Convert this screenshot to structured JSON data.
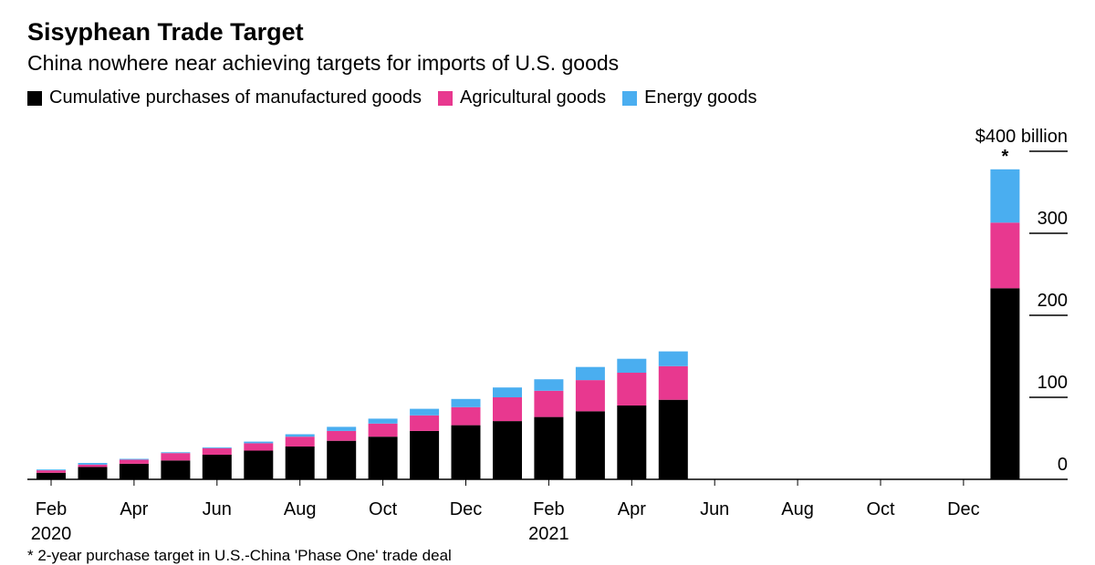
{
  "header": {
    "title": "Sisyphean Trade Target",
    "subtitle": "China nowhere near achieving targets for imports of U.S. goods"
  },
  "footnote": "* 2-year purchase target in U.S.-China 'Phase One' trade deal",
  "chart_data": {
    "type": "bar",
    "stacked": true,
    "title": "Sisyphean Trade Target",
    "subtitle": "China nowhere near achieving targets for imports of U.S. goods",
    "categories": [
      "Feb 2020",
      "Mar 2020",
      "Apr 2020",
      "May 2020",
      "Jun 2020",
      "Jul 2020",
      "Aug 2020",
      "Sep 2020",
      "Oct 2020",
      "Nov 2020",
      "Dec 2020",
      "Jan 2021",
      "Feb 2021",
      "Mar 2021",
      "Apr 2021",
      "May 2021",
      "Jun 2021",
      "Jul 2021",
      "Aug 2021",
      "Sep 2021",
      "Oct 2021",
      "Nov 2021",
      "Dec 2021",
      "Target"
    ],
    "series": [
      {
        "name": "Cumulative purchases of manufactured goods",
        "color": "#000000",
        "values": [
          8,
          15,
          19,
          23,
          30,
          35,
          40,
          47,
          52,
          59,
          66,
          71,
          76,
          83,
          90,
          97,
          null,
          null,
          null,
          null,
          null,
          null,
          null,
          233
        ]
      },
      {
        "name": "Agricultural goods",
        "color": "#e8388f",
        "values": [
          3,
          3,
          5,
          9,
          8,
          9,
          12,
          12,
          16,
          19,
          22,
          29,
          32,
          38,
          40,
          41,
          null,
          null,
          null,
          null,
          null,
          null,
          null,
          80
        ]
      },
      {
        "name": "Energy goods",
        "color": "#4aaef0",
        "values": [
          1,
          2,
          1,
          1,
          1,
          2,
          3,
          5,
          6,
          8,
          10,
          12,
          14,
          16,
          17,
          18,
          null,
          null,
          null,
          null,
          null,
          null,
          null,
          65
        ]
      }
    ],
    "target_annotation": "*",
    "x_ticks": [
      {
        "index": 0,
        "label": "Feb",
        "year": "2020"
      },
      {
        "index": 2,
        "label": "Apr",
        "year": ""
      },
      {
        "index": 4,
        "label": "Jun",
        "year": ""
      },
      {
        "index": 6,
        "label": "Aug",
        "year": ""
      },
      {
        "index": 8,
        "label": "Oct",
        "year": ""
      },
      {
        "index": 10,
        "label": "Dec",
        "year": ""
      },
      {
        "index": 12,
        "label": "Feb",
        "year": "2021"
      },
      {
        "index": 14,
        "label": "Apr",
        "year": ""
      },
      {
        "index": 16,
        "label": "Jun",
        "year": ""
      },
      {
        "index": 18,
        "label": "Aug",
        "year": ""
      },
      {
        "index": 20,
        "label": "Oct",
        "year": ""
      },
      {
        "index": 22,
        "label": "Dec",
        "year": ""
      }
    ],
    "y_ticks": [
      {
        "value": 0,
        "label": "0"
      },
      {
        "value": 100,
        "label": "100"
      },
      {
        "value": 200,
        "label": "200"
      },
      {
        "value": 300,
        "label": "300"
      },
      {
        "value": 400,
        "label": "$400 billion"
      }
    ],
    "ylim": [
      0,
      400
    ],
    "y_axis_position": "right",
    "grid": false,
    "legend_position": "top-left"
  }
}
